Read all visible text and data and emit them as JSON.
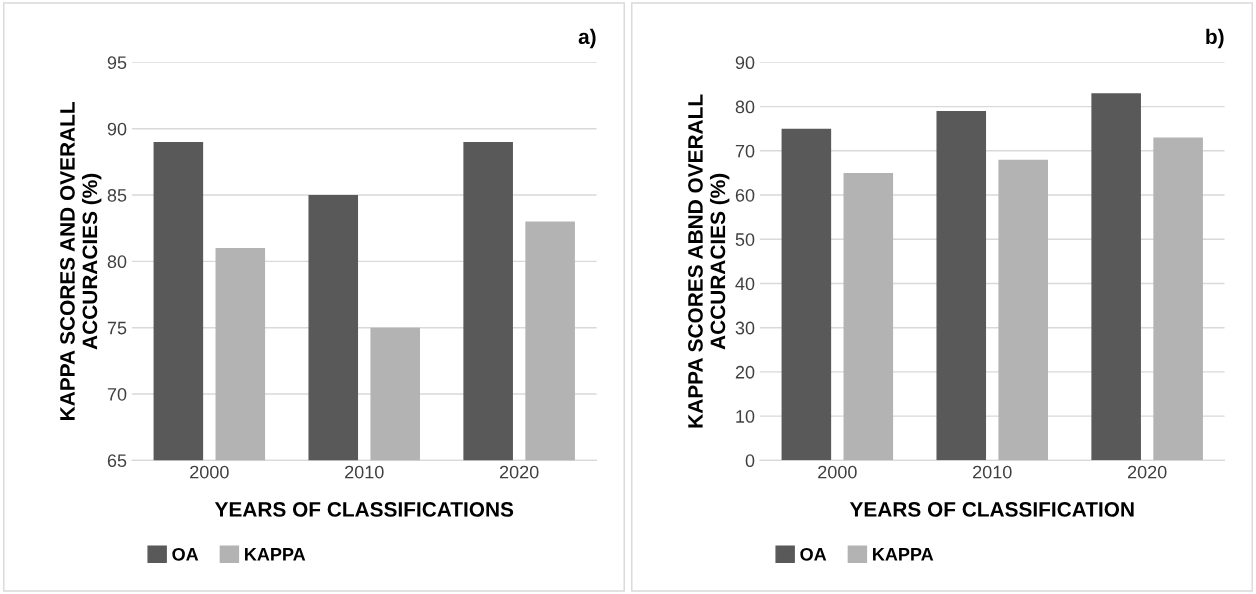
{
  "chart_data": [
    {
      "type": "bar",
      "annotations": [
        "a)"
      ],
      "xlabel": "YEARS OF CLASSIFICATIONS",
      "ylabel": "KAPPA SCORES AND OVERALL ACCURACIES (%)",
      "categories": [
        "2000",
        "2010",
        "2020"
      ],
      "series": [
        {
          "name": "OA",
          "color": "#595959",
          "values": [
            89,
            85,
            89
          ]
        },
        {
          "name": "KAPPA",
          "color": "#b3b3b3",
          "values": [
            81,
            75,
            83
          ]
        }
      ],
      "ylim": [
        65,
        95
      ],
      "yticks": [
        65,
        70,
        75,
        80,
        85,
        90,
        95
      ],
      "grid": "y",
      "legend": "bottom"
    },
    {
      "type": "bar",
      "annotations": [
        "b)"
      ],
      "xlabel": "YEARS OF CLASSIFICATION",
      "ylabel": "KAPPA SCORES ABND OVERALL ACCURACIES (%)",
      "categories": [
        "2000",
        "2010",
        "2020"
      ],
      "series": [
        {
          "name": "OA",
          "color": "#595959",
          "values": [
            75,
            79,
            83
          ]
        },
        {
          "name": "KAPPA",
          "color": "#b3b3b3",
          "values": [
            65,
            68,
            73
          ]
        }
      ],
      "ylim": [
        0,
        90
      ],
      "yticks": [
        0,
        10,
        20,
        30,
        40,
        50,
        60,
        70,
        80,
        90
      ],
      "grid": "y",
      "legend": "bottom"
    }
  ]
}
